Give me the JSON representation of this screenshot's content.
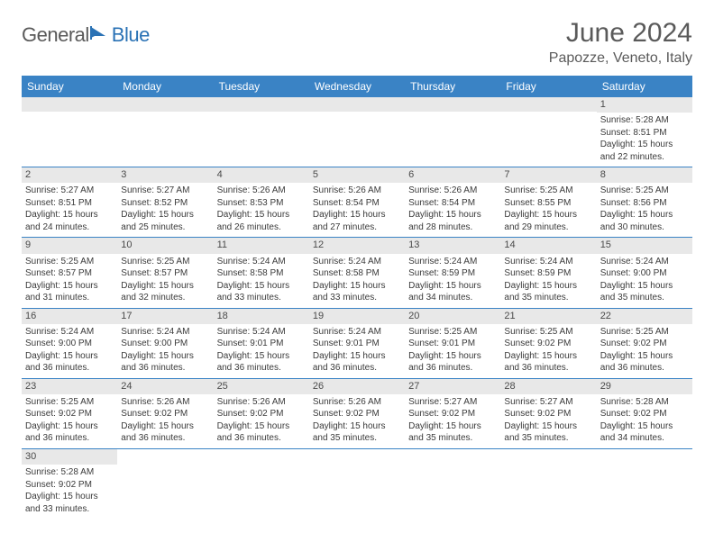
{
  "logo": {
    "part1": "General",
    "part2": "Blue"
  },
  "title": "June 2024",
  "location": "Papozze, Veneto, Italy",
  "colors": {
    "header_bg": "#3a83c5",
    "header_text": "#ffffff",
    "daynum_bg": "#e8e8e8",
    "daynum_text": "#4a4a4a",
    "body_text": "#3a3a3a",
    "title_text": "#5a5a5a",
    "logo_gray": "#5a5a5a",
    "logo_blue": "#2a72b5",
    "row_border": "#3a83c5"
  },
  "typography": {
    "title_fontsize": 30,
    "location_fontsize": 16,
    "dayheader_fontsize": 12,
    "daynum_fontsize": 11,
    "body_fontsize": 10,
    "font_family": "Arial"
  },
  "dayHeaders": [
    "Sunday",
    "Monday",
    "Tuesday",
    "Wednesday",
    "Thursday",
    "Friday",
    "Saturday"
  ],
  "weeks": [
    [
      null,
      null,
      null,
      null,
      null,
      null,
      {
        "n": "1",
        "sr": "5:28 AM",
        "ss": "8:51 PM",
        "dl": "15 hours and 22 minutes."
      }
    ],
    [
      {
        "n": "2",
        "sr": "5:27 AM",
        "ss": "8:51 PM",
        "dl": "15 hours and 24 minutes."
      },
      {
        "n": "3",
        "sr": "5:27 AM",
        "ss": "8:52 PM",
        "dl": "15 hours and 25 minutes."
      },
      {
        "n": "4",
        "sr": "5:26 AM",
        "ss": "8:53 PM",
        "dl": "15 hours and 26 minutes."
      },
      {
        "n": "5",
        "sr": "5:26 AM",
        "ss": "8:54 PM",
        "dl": "15 hours and 27 minutes."
      },
      {
        "n": "6",
        "sr": "5:26 AM",
        "ss": "8:54 PM",
        "dl": "15 hours and 28 minutes."
      },
      {
        "n": "7",
        "sr": "5:25 AM",
        "ss": "8:55 PM",
        "dl": "15 hours and 29 minutes."
      },
      {
        "n": "8",
        "sr": "5:25 AM",
        "ss": "8:56 PM",
        "dl": "15 hours and 30 minutes."
      }
    ],
    [
      {
        "n": "9",
        "sr": "5:25 AM",
        "ss": "8:57 PM",
        "dl": "15 hours and 31 minutes."
      },
      {
        "n": "10",
        "sr": "5:25 AM",
        "ss": "8:57 PM",
        "dl": "15 hours and 32 minutes."
      },
      {
        "n": "11",
        "sr": "5:24 AM",
        "ss": "8:58 PM",
        "dl": "15 hours and 33 minutes."
      },
      {
        "n": "12",
        "sr": "5:24 AM",
        "ss": "8:58 PM",
        "dl": "15 hours and 33 minutes."
      },
      {
        "n": "13",
        "sr": "5:24 AM",
        "ss": "8:59 PM",
        "dl": "15 hours and 34 minutes."
      },
      {
        "n": "14",
        "sr": "5:24 AM",
        "ss": "8:59 PM",
        "dl": "15 hours and 35 minutes."
      },
      {
        "n": "15",
        "sr": "5:24 AM",
        "ss": "9:00 PM",
        "dl": "15 hours and 35 minutes."
      }
    ],
    [
      {
        "n": "16",
        "sr": "5:24 AM",
        "ss": "9:00 PM",
        "dl": "15 hours and 36 minutes."
      },
      {
        "n": "17",
        "sr": "5:24 AM",
        "ss": "9:00 PM",
        "dl": "15 hours and 36 minutes."
      },
      {
        "n": "18",
        "sr": "5:24 AM",
        "ss": "9:01 PM",
        "dl": "15 hours and 36 minutes."
      },
      {
        "n": "19",
        "sr": "5:24 AM",
        "ss": "9:01 PM",
        "dl": "15 hours and 36 minutes."
      },
      {
        "n": "20",
        "sr": "5:25 AM",
        "ss": "9:01 PM",
        "dl": "15 hours and 36 minutes."
      },
      {
        "n": "21",
        "sr": "5:25 AM",
        "ss": "9:02 PM",
        "dl": "15 hours and 36 minutes."
      },
      {
        "n": "22",
        "sr": "5:25 AM",
        "ss": "9:02 PM",
        "dl": "15 hours and 36 minutes."
      }
    ],
    [
      {
        "n": "23",
        "sr": "5:25 AM",
        "ss": "9:02 PM",
        "dl": "15 hours and 36 minutes."
      },
      {
        "n": "24",
        "sr": "5:26 AM",
        "ss": "9:02 PM",
        "dl": "15 hours and 36 minutes."
      },
      {
        "n": "25",
        "sr": "5:26 AM",
        "ss": "9:02 PM",
        "dl": "15 hours and 36 minutes."
      },
      {
        "n": "26",
        "sr": "5:26 AM",
        "ss": "9:02 PM",
        "dl": "15 hours and 35 minutes."
      },
      {
        "n": "27",
        "sr": "5:27 AM",
        "ss": "9:02 PM",
        "dl": "15 hours and 35 minutes."
      },
      {
        "n": "28",
        "sr": "5:27 AM",
        "ss": "9:02 PM",
        "dl": "15 hours and 35 minutes."
      },
      {
        "n": "29",
        "sr": "5:28 AM",
        "ss": "9:02 PM",
        "dl": "15 hours and 34 minutes."
      }
    ],
    [
      {
        "n": "30",
        "sr": "5:28 AM",
        "ss": "9:02 PM",
        "dl": "15 hours and 33 minutes."
      },
      null,
      null,
      null,
      null,
      null,
      null
    ]
  ],
  "labels": {
    "sunrise": "Sunrise:",
    "sunset": "Sunset:",
    "daylight": "Daylight:"
  }
}
